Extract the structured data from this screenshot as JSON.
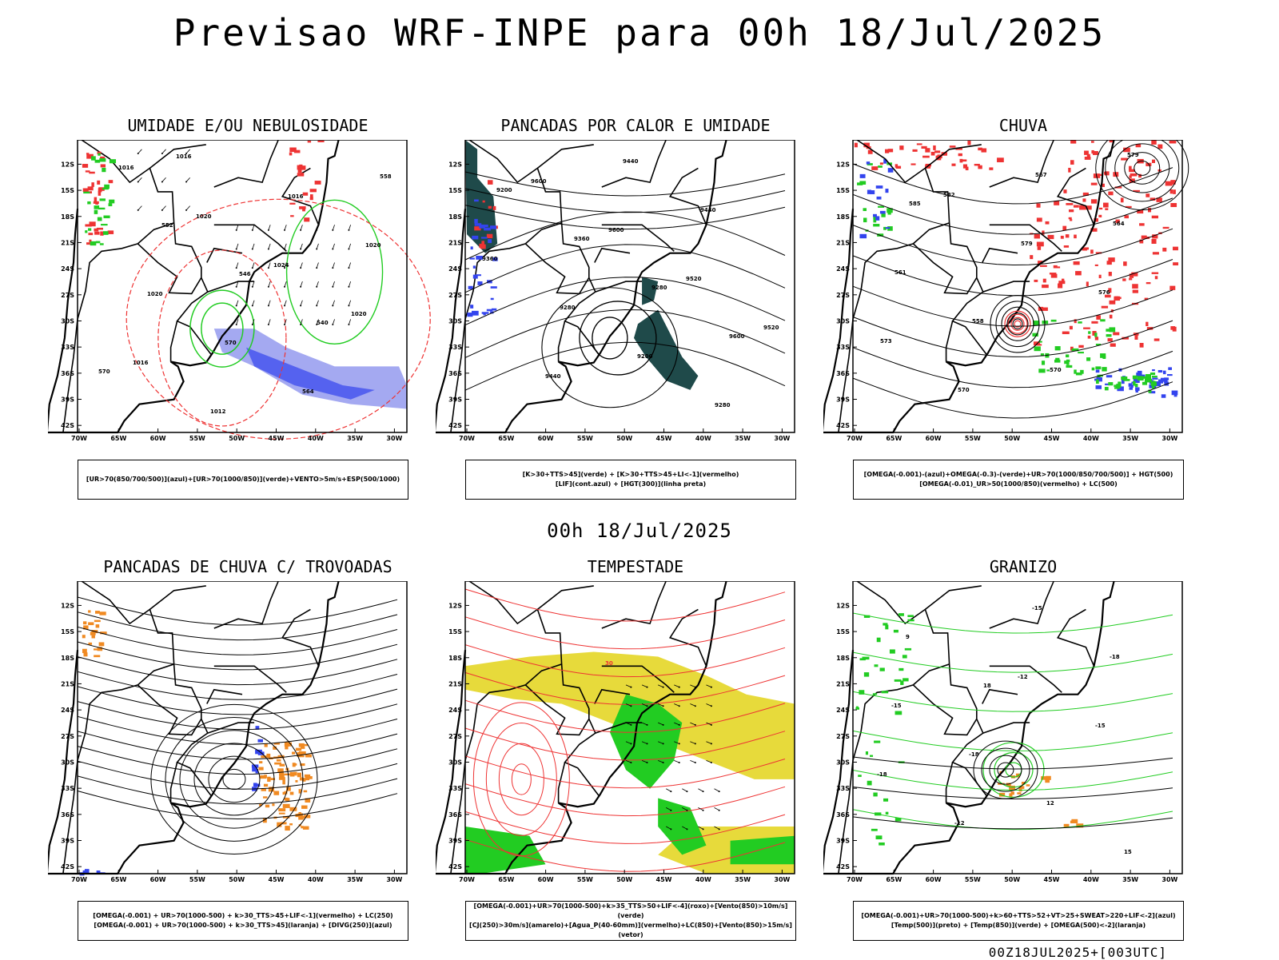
{
  "title": "Previsao WRF-INPE  para 00h 18/Jul/2025",
  "subtitle": "00h 18/Jul/2025",
  "footer": "00Z18JUL2025+[003UTC]",
  "axes": {
    "lat_labels": [
      "12S",
      "15S",
      "18S",
      "21S",
      "24S",
      "27S",
      "30S",
      "33S",
      "36S",
      "39S",
      "42S"
    ],
    "lon_labels": [
      "70W",
      "65W",
      "60W",
      "55W",
      "50W",
      "45W",
      "40W",
      "35W",
      "30W"
    ]
  },
  "panels": [
    {
      "title": "UMIDADE E/OU NEBULOSIDADE",
      "legend": [
        "[UR>70(850/700/500)](azul)+[UR>70(1000/850)](verde)+VENTO>5m/s+ESP(500/1000)"
      ],
      "labels": [
        "1016",
        "1020",
        "1024",
        "1020",
        "1016",
        "1012",
        "1016",
        "1020",
        "1020",
        "570",
        "564",
        "558",
        "552",
        "546",
        "540",
        "570",
        "1016"
      ]
    },
    {
      "title": "PANCADAS POR CALOR E UMIDADE",
      "legend": [
        "[K>30+TTS>45](verde) + [K>30+TTS>45+LI<-1](vermelho)",
        "[LIF](cont.azul) + [HGT(300)](linha preta)"
      ],
      "labels": [
        "9600",
        "9600",
        "9520",
        "9520",
        "9440",
        "9440",
        "9440",
        "9360",
        "9280",
        "9200",
        "9280",
        "9200",
        "9360",
        "9280",
        "9600"
      ]
    },
    {
      "title": "CHUVA",
      "legend": [
        "[OMEGA(-0.001)-(azul)+OMEGA(-0.3)-(verde)+UR>70(1000/850/700/500)] + HGT(500)",
        "[OMEGA(-0.01)_UR>50(1000/850)(vermelho) + LC(500)"
      ],
      "labels": [
        "582",
        "579",
        "576",
        "573",
        "570",
        "567",
        "564",
        "561",
        "558",
        "570",
        "579",
        "585"
      ]
    },
    {
      "title": "PANCADAS DE CHUVA C/ TROVOADAS",
      "legend": [
        "[OMEGA(-0.001) + UR>70(1000-500) + k>30_TTS>45+LIF<-1](vermelho) + LC(250)",
        "[OMEGA(-0.001) + UR>70(1000-500) + k>30_TTS>45](laranja) + [DIVG(250)](azul)"
      ],
      "labels": []
    },
    {
      "title": "TEMPESTADE",
      "legend": [
        "[OMEGA(-0.001)+UR>70(1000-500)+k>35_TTS>50+LIF<-4](roxo)+[Vento(850)>10m/s](verde)",
        "[CJ(250)>30m/s](amarelo)+[Agua_P(40-60mm)](vermelho)+LC(850)+[Vento(850)>15m/s](vetor)"
      ],
      "labels": [
        "30"
      ]
    },
    {
      "title": "GRANIZO",
      "legend": [
        "[OMEGA(-0.001)+UR>70(1000-500)+k>60+TTS>52+VT>25+SWEAT>220+LIF<-2](azul)",
        "[Temp(500)](preto) + [Temp(850)](verde) + [OMEGA(500)<-2](laranja)"
      ],
      "labels": [
        "-12",
        "-15",
        "-18",
        "-12",
        "-15",
        "-18",
        "-15",
        "-18",
        "12",
        "15",
        "9",
        "18"
      ]
    }
  ],
  "colors": {
    "green": "#22cc22",
    "red": "#ee3333",
    "blue": "#3344ee",
    "lavender": "#9aa0f0",
    "darkteal": "#1f4a4a",
    "yellow": "#e6d830",
    "orange": "#f08a22"
  }
}
